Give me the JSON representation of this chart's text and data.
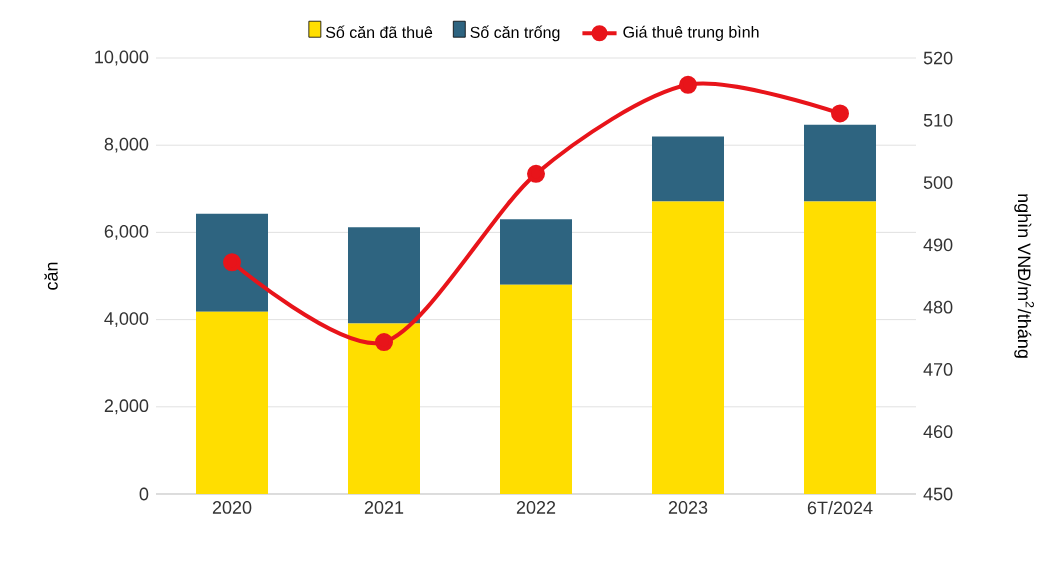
{
  "chart_data": {
    "type": "bar",
    "stacked": true,
    "categories": [
      "2020",
      "2021",
      "2022",
      "2023",
      "6T/2024"
    ],
    "ylabel": "căn",
    "y2label": "nghìn VNĐ/m$^{2}$/tháng",
    "series": [
      {
        "name": "Số căn đã thuê",
        "color": "#ffde00",
        "values": [
          4180,
          3910,
          4800,
          6710,
          6710
        ]
      },
      {
        "name": "Số căn trống",
        "color": "#2e6480",
        "values": [
          2250,
          2210,
          1500,
          1490,
          1760
        ]
      },
      {
        "name": "Giá thuê trung bình",
        "type": "line",
        "axis": "y2",
        "color": "#e8141a",
        "marker": "circle",
        "values": [
          487.2,
          474.4,
          501.4,
          515.7,
          511.1
        ]
      }
    ],
    "ylim": [
      0,
      10000
    ],
    "yticks": [
      {
        "value": 0,
        "label": "0"
      },
      {
        "value": 2000,
        "label": "2,000"
      },
      {
        "value": 4000,
        "label": "4,000"
      },
      {
        "value": 6000,
        "label": "6,000"
      },
      {
        "value": 8000,
        "label": "8,000"
      },
      {
        "value": 10000,
        "label": "10,000"
      }
    ],
    "y2lim": [
      450,
      520
    ],
    "y2ticks": [
      450,
      460,
      470,
      480,
      490,
      500,
      510,
      520
    ],
    "grid": "y",
    "legend": "top"
  }
}
